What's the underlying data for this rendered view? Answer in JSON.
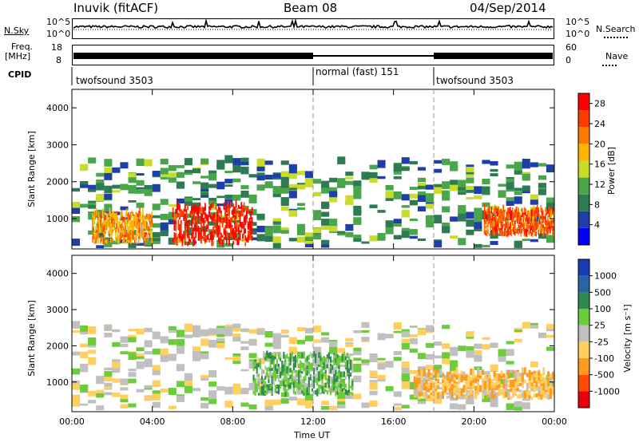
{
  "header": {
    "station": "Inuvik (fitACF)",
    "beam": "Beam 08",
    "date": "04/Sep/2014"
  },
  "aux_panels": {
    "nsky_label": "N.Sky",
    "nsky_tick_top": "10^5",
    "nsky_tick_bottom": "10^0",
    "nsearch_label": "N.Search",
    "nsearch_tick_top": "10^5",
    "nsearch_tick_bottom": "10^0",
    "freq_label": "Freq.",
    "freq_unit": "[MHz]",
    "freq_tick_top": "18",
    "freq_tick_bottom": "8",
    "nave_label": "Nave",
    "nave_tick_top": "60",
    "nave_tick_bottom": "0",
    "cpid_label": "CPID",
    "cpid_segments": [
      {
        "name": "twofsound 3503",
        "start_hour": 0,
        "end_hour": 12
      },
      {
        "name": "normal (fast) 151",
        "start_hour": 12,
        "end_hour": 18
      },
      {
        "name": "twofsound 3503",
        "start_hour": 18,
        "end_hour": 24
      }
    ]
  },
  "colors": {
    "power_scale": [
      "#0000ff",
      "#1e3fa8",
      "#2e7a52",
      "#4aa64a",
      "#c8dc28",
      "#ffb400",
      "#ff7800",
      "#ff3c00",
      "#ff0000"
    ],
    "velocity_scale": [
      "#e8000a",
      "#ff4b00",
      "#ff9a1e",
      "#ffd060",
      "#c0c0c0",
      "#6ccc3a",
      "#2f8a52",
      "#2a64a8",
      "#1a3bb8"
    ]
  },
  "chart_data": [
    {
      "type": "heatmap",
      "title": "Power",
      "xlabel": "",
      "ylabel": "Slant Range [km]",
      "xlim": [
        0,
        24
      ],
      "ylim": [
        180,
        4500
      ],
      "y_ticks": [
        "1000",
        "2000",
        "3000",
        "4000"
      ],
      "colorbar_label": "Power [dB]",
      "colorbar_ticks": [
        "4",
        "8",
        "12",
        "16",
        "20",
        "24",
        "28"
      ],
      "colorbar_range": [
        0,
        30
      ],
      "regions": [
        {
          "t0": 0,
          "t1": 24,
          "r0": 200,
          "r1": 2500,
          "level": 10
        },
        {
          "t0": 5,
          "t1": 9,
          "r0": 250,
          "r1": 1300,
          "level": 28
        },
        {
          "t0": 20.5,
          "t1": 24,
          "r0": 500,
          "r1": 1200,
          "level": 24
        },
        {
          "t0": 1,
          "t1": 4,
          "r0": 300,
          "r1": 1100,
          "level": 20
        }
      ]
    },
    {
      "type": "heatmap",
      "title": "Velocity",
      "xlabel": "Time UT",
      "ylabel": "Slant Range [km]",
      "xlim": [
        0,
        24
      ],
      "ylim": [
        180,
        4500
      ],
      "x_ticks": [
        "00:00",
        "04:00",
        "08:00",
        "12:00",
        "16:00",
        "20:00",
        "00:00"
      ],
      "y_ticks": [
        "1000",
        "2000",
        "3000",
        "4000"
      ],
      "colorbar_label": "Velocity [m s⁻¹]",
      "colorbar_ticks": [
        "1000",
        "500",
        "100",
        "25",
        "-25",
        "-100",
        "-500",
        "-1000"
      ],
      "colorbar_range": [
        -1000,
        1000
      ],
      "regions": [
        {
          "t0": 0,
          "t1": 24,
          "r0": 200,
          "r1": 2500,
          "level": 0
        },
        {
          "t0": 9,
          "t1": 14,
          "r0": 600,
          "r1": 1700,
          "level": 300
        },
        {
          "t0": 17,
          "t1": 24,
          "r0": 500,
          "r1": 1200,
          "level": -300
        }
      ]
    }
  ]
}
